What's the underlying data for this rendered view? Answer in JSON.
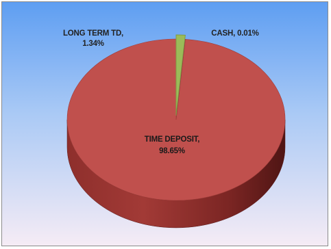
{
  "chart_data": {
    "type": "pie",
    "three_d": true,
    "title": "",
    "legend": "none",
    "slices": [
      {
        "category": "TIME DEPOSIT",
        "value": 98.65,
        "value_label": "98.65%",
        "color": "#c0504d"
      },
      {
        "category": "LONG TERM TD",
        "value": 1.34,
        "value_label": "1.34%",
        "color": "#9bbb59"
      },
      {
        "category": "CASH",
        "value": 0.01,
        "value_label": "0.01%",
        "color": "#4f81bd"
      }
    ]
  },
  "labels": {
    "time_deposit_name": "TIME DEPOSIT,",
    "time_deposit_value": "98.65%",
    "long_term_td_name": "LONG TERM TD,",
    "long_term_td_value": "1.34%",
    "cash_text": "CASH, 0.01%"
  },
  "colors": {
    "background_top": "#5e9ef2",
    "background_bottom": "#f6ecf5"
  }
}
